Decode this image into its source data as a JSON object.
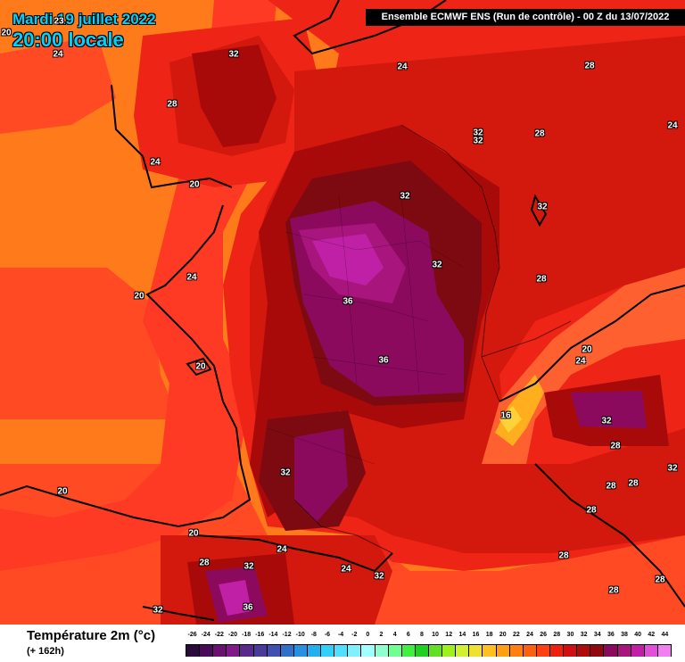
{
  "header": {
    "date": "Mardi 19 juillet 2022",
    "time": "20:00 locale",
    "model_run": "Ensemble ECMWF ENS  (Run de contrôle)  -  00 Z du 13/07/2022"
  },
  "map": {
    "region": "France / Western Europe",
    "variable": "2m temperature",
    "units": "°C",
    "colors": {
      "sea": "#ff7a1a",
      "land_base": "#ff3a1e",
      "t24": "#ee2416",
      "t28": "#d3180e",
      "t32": "#a80a0a",
      "t34": "#7d0a10",
      "t36": "#8b0a5e",
      "t38": "#a8157c",
      "t40": "#c020a5",
      "t42": "#e050d8",
      "t20": "#ff6030",
      "t16": "#ffae1e",
      "t12": "#ffd23c"
    },
    "isotherm_labels": [
      {
        "text": "20"
      },
      {
        "text": "24"
      },
      {
        "text": "32"
      },
      {
        "text": "24"
      },
      {
        "text": "28"
      },
      {
        "text": "28"
      },
      {
        "text": "24"
      },
      {
        "text": "32"
      },
      {
        "text": "32"
      },
      {
        "text": "28"
      },
      {
        "text": "24"
      },
      {
        "text": "20"
      },
      {
        "text": "32"
      },
      {
        "text": "32"
      },
      {
        "text": "32"
      },
      {
        "text": "24"
      },
      {
        "text": "28"
      },
      {
        "text": "20"
      },
      {
        "text": "36"
      },
      {
        "text": "36"
      },
      {
        "text": "20"
      },
      {
        "text": "24"
      },
      {
        "text": "16"
      },
      {
        "text": "32"
      },
      {
        "text": "28"
      },
      {
        "text": "32"
      },
      {
        "text": "28"
      },
      {
        "text": "28"
      },
      {
        "text": "20"
      },
      {
        "text": "28"
      },
      {
        "text": "20"
      },
      {
        "text": "24"
      },
      {
        "text": "28"
      },
      {
        "text": "32"
      },
      {
        "text": "24"
      },
      {
        "text": "32"
      },
      {
        "text": "28"
      },
      {
        "text": "32"
      },
      {
        "text": "36"
      },
      {
        "text": "28"
      },
      {
        "text": "28"
      },
      {
        "text": "23"
      }
    ]
  },
  "legend": {
    "title": "Température 2m (°c)",
    "subtitle": "(+ 162h)",
    "ticks": [
      "-26",
      "-24",
      "-22",
      "-20",
      "-18",
      "-16",
      "-14",
      "-12",
      "-10",
      "-8",
      "-6",
      "-4",
      "-2",
      "0",
      "2",
      "4",
      "6",
      "8",
      "10",
      "12",
      "14",
      "16",
      "18",
      "20",
      "22",
      "24",
      "26",
      "28",
      "30",
      "32",
      "34",
      "36",
      "38",
      "40",
      "42",
      "44"
    ],
    "swatch_colors": [
      "#2a0a3a",
      "#4a0a5a",
      "#6a1070",
      "#801a88",
      "#5a2a8a",
      "#4a3a9a",
      "#4050b0",
      "#3070c8",
      "#2890e0",
      "#20b0f0",
      "#30d0f8",
      "#50e0ff",
      "#80f0ff",
      "#a0ffff",
      "#90ffd0",
      "#70ff90",
      "#40f040",
      "#20d020",
      "#60e020",
      "#a0f020",
      "#d0f030",
      "#f0e030",
      "#ffc020",
      "#ffa010",
      "#ff8010",
      "#ff6010",
      "#ff4010",
      "#f02010",
      "#d01010",
      "#b00a0a",
      "#900810",
      "#8b0a5e",
      "#a8157c",
      "#c020a5",
      "#e050d8",
      "#f080f0"
    ]
  }
}
